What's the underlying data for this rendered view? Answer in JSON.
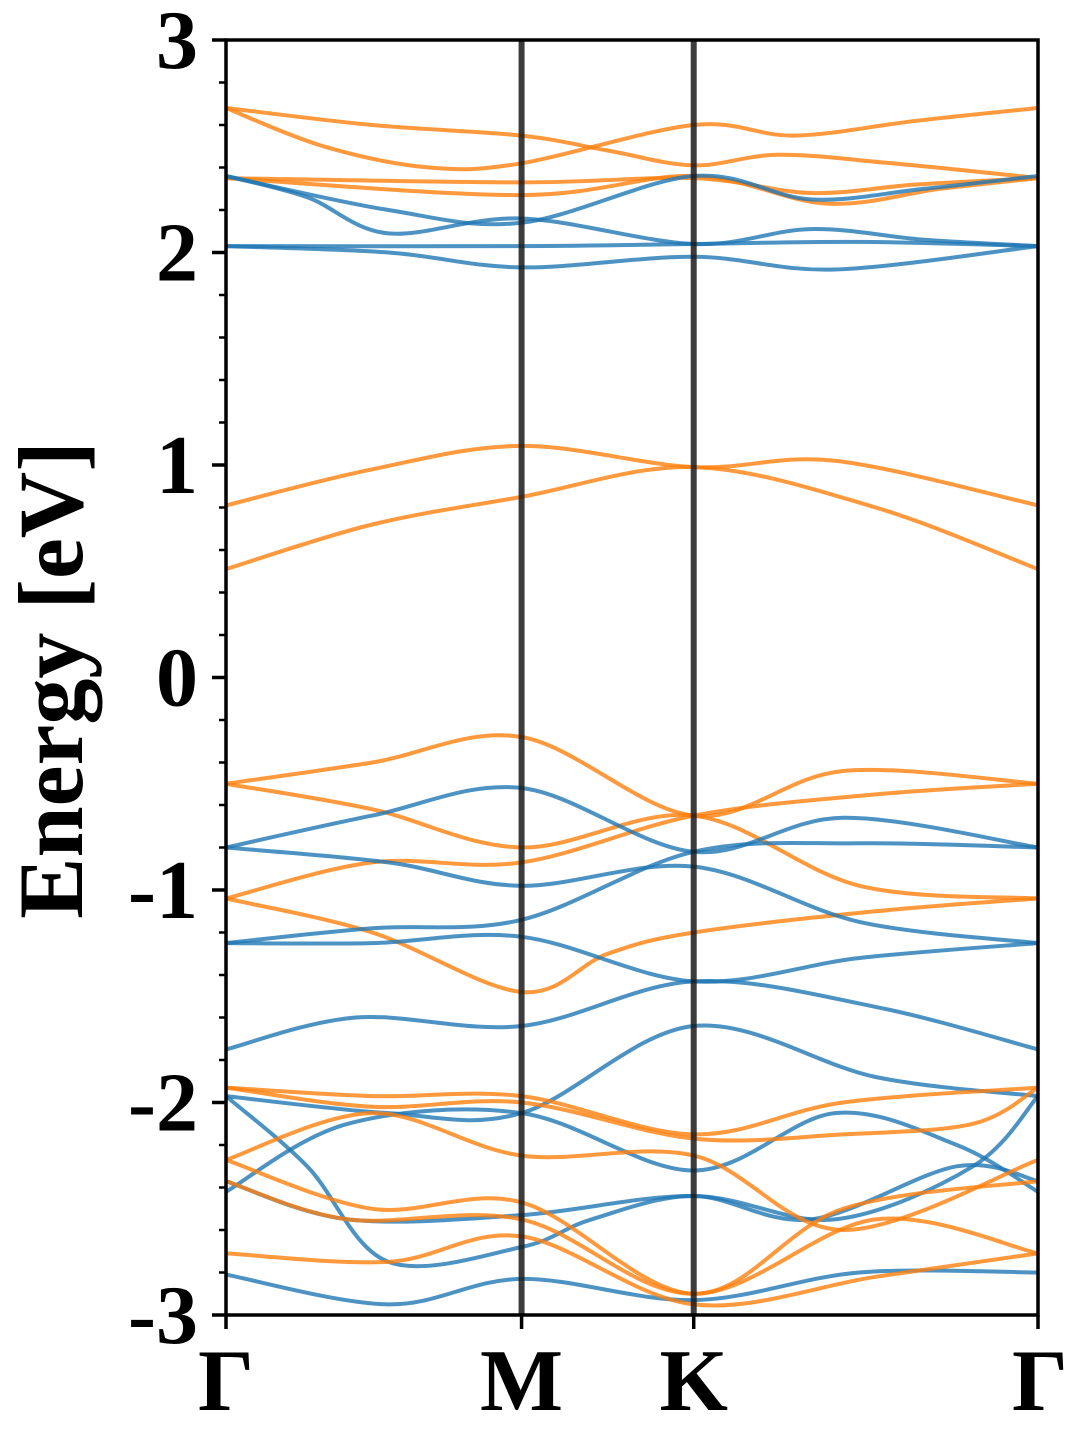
{
  "chart_data": {
    "type": "line",
    "title": "",
    "xlabel": "",
    "ylabel": "Energy [eV]",
    "ylim": [
      -3,
      3
    ],
    "yticks": [
      {
        "value": 3,
        "label": "3"
      },
      {
        "value": 2,
        "label": "2"
      },
      {
        "value": 1,
        "label": "1"
      },
      {
        "value": 0,
        "label": "0"
      },
      {
        "value": -1,
        "label": "-1"
      },
      {
        "value": -2,
        "label": "-2"
      },
      {
        "value": -3,
        "label": "-3"
      }
    ],
    "xlim": [
      0,
      1
    ],
    "kpoints": [
      {
        "label": "Γ",
        "x": 0.0
      },
      {
        "label": "M",
        "x": 0.364
      },
      {
        "label": "K",
        "x": 0.576
      },
      {
        "label": "Γ",
        "x": 1.0
      }
    ],
    "grid": false,
    "legend": "none",
    "colors": {
      "spin_a": "#1f77b4",
      "spin_b": "#ff7f0e",
      "divider": "#1a1a1a"
    },
    "series": [
      {
        "color": "#ff7f0e",
        "points": [
          [
            0,
            2.68
          ],
          [
            0.18,
            2.6
          ],
          [
            0.364,
            2.55
          ],
          [
            0.47,
            2.48
          ],
          [
            0.576,
            2.41
          ],
          [
            0.68,
            2.46
          ],
          [
            0.82,
            2.42
          ],
          [
            1.0,
            2.35
          ]
        ]
      },
      {
        "color": "#ff7f0e",
        "points": [
          [
            0,
            2.68
          ],
          [
            0.12,
            2.5
          ],
          [
            0.25,
            2.4
          ],
          [
            0.364,
            2.42
          ],
          [
            0.576,
            2.6
          ],
          [
            0.7,
            2.55
          ],
          [
            0.85,
            2.62
          ],
          [
            1.0,
            2.68
          ]
        ]
      },
      {
        "color": "#ff7f0e",
        "points": [
          [
            0,
            2.35
          ],
          [
            0.364,
            2.33
          ],
          [
            0.576,
            2.35
          ],
          [
            0.72,
            2.28
          ],
          [
            0.85,
            2.32
          ],
          [
            1.0,
            2.35
          ]
        ]
      },
      {
        "color": "#ff7f0e",
        "points": [
          [
            0,
            2.35
          ],
          [
            0.364,
            2.27
          ],
          [
            0.576,
            2.36
          ],
          [
            0.74,
            2.23
          ],
          [
            0.88,
            2.3
          ],
          [
            1.0,
            2.35
          ]
        ]
      },
      {
        "color": "#1f77b4",
        "points": [
          [
            0,
            2.36
          ],
          [
            0.2,
            2.2
          ],
          [
            0.364,
            2.14
          ],
          [
            0.576,
            2.36
          ],
          [
            0.72,
            2.25
          ],
          [
            0.86,
            2.3
          ],
          [
            1.0,
            2.36
          ]
        ]
      },
      {
        "color": "#1f77b4",
        "points": [
          [
            0,
            2.36
          ],
          [
            0.1,
            2.26
          ],
          [
            0.2,
            2.09
          ],
          [
            0.364,
            2.16
          ],
          [
            0.576,
            2.04
          ],
          [
            0.72,
            2.11
          ],
          [
            0.86,
            2.06
          ],
          [
            1.0,
            2.03
          ]
        ]
      },
      {
        "color": "#1f77b4",
        "points": [
          [
            0,
            2.03
          ],
          [
            0.364,
            2.03
          ],
          [
            0.576,
            2.04
          ],
          [
            0.78,
            2.05
          ],
          [
            1.0,
            2.03
          ]
        ]
      },
      {
        "color": "#1f77b4",
        "points": [
          [
            0,
            2.03
          ],
          [
            0.2,
            2.0
          ],
          [
            0.364,
            1.93
          ],
          [
            0.576,
            1.98
          ],
          [
            0.75,
            1.92
          ],
          [
            1.0,
            2.03
          ]
        ]
      },
      {
        "color": "#ff7f0e",
        "points": [
          [
            0,
            0.81
          ],
          [
            0.18,
            0.98
          ],
          [
            0.364,
            1.09
          ],
          [
            0.576,
            0.99
          ],
          [
            0.75,
            1.02
          ],
          [
            1.0,
            0.81
          ]
        ]
      },
      {
        "color": "#ff7f0e",
        "points": [
          [
            0,
            0.51
          ],
          [
            0.18,
            0.72
          ],
          [
            0.364,
            0.85
          ],
          [
            0.576,
            0.99
          ],
          [
            0.8,
            0.8
          ],
          [
            1.0,
            0.51
          ]
        ]
      },
      {
        "color": "#ff7f0e",
        "points": [
          [
            0,
            -0.5
          ],
          [
            0.18,
            -0.4
          ],
          [
            0.364,
            -0.28
          ],
          [
            0.576,
            -0.65
          ],
          [
            0.76,
            -0.44
          ],
          [
            1.0,
            -0.5
          ]
        ]
      },
      {
        "color": "#ff7f0e",
        "points": [
          [
            0,
            -0.5
          ],
          [
            0.18,
            -0.62
          ],
          [
            0.364,
            -0.8
          ],
          [
            0.576,
            -0.65
          ],
          [
            0.78,
            -0.98
          ],
          [
            1.0,
            -1.04
          ]
        ]
      },
      {
        "color": "#ff7f0e",
        "points": [
          [
            0,
            -1.04
          ],
          [
            0.18,
            -0.87
          ],
          [
            0.364,
            -0.87
          ],
          [
            0.576,
            -0.65
          ],
          [
            0.8,
            -0.55
          ],
          [
            1.0,
            -0.5
          ]
        ]
      },
      {
        "color": "#ff7f0e",
        "points": [
          [
            0,
            -1.04
          ],
          [
            0.18,
            -1.2
          ],
          [
            0.364,
            -1.48
          ],
          [
            0.47,
            -1.3
          ],
          [
            0.576,
            -1.2
          ],
          [
            0.8,
            -1.1
          ],
          [
            1.0,
            -1.04
          ]
        ]
      },
      {
        "color": "#1f77b4",
        "points": [
          [
            0,
            -0.8
          ],
          [
            0.18,
            -0.65
          ],
          [
            0.364,
            -0.52
          ],
          [
            0.576,
            -0.82
          ],
          [
            0.76,
            -0.66
          ],
          [
            1.0,
            -0.8
          ]
        ]
      },
      {
        "color": "#1f77b4",
        "points": [
          [
            0,
            -0.8
          ],
          [
            0.2,
            -0.87
          ],
          [
            0.364,
            -0.98
          ],
          [
            0.576,
            -0.89
          ],
          [
            0.78,
            -1.15
          ],
          [
            1.0,
            -1.25
          ]
        ]
      },
      {
        "color": "#1f77b4",
        "points": [
          [
            0,
            -1.25
          ],
          [
            0.18,
            -1.18
          ],
          [
            0.364,
            -1.14
          ],
          [
            0.576,
            -0.82
          ],
          [
            0.78,
            -0.78
          ],
          [
            1.0,
            -0.8
          ]
        ]
      },
      {
        "color": "#1f77b4",
        "points": [
          [
            0,
            -1.25
          ],
          [
            0.18,
            -1.25
          ],
          [
            0.364,
            -1.22
          ],
          [
            0.576,
            -1.43
          ],
          [
            0.78,
            -1.32
          ],
          [
            1.0,
            -1.25
          ]
        ]
      },
      {
        "color": "#1f77b4",
        "points": [
          [
            0,
            -1.75
          ],
          [
            0.16,
            -1.6
          ],
          [
            0.364,
            -1.64
          ],
          [
            0.576,
            -1.43
          ],
          [
            0.8,
            -1.55
          ],
          [
            1.0,
            -1.75
          ]
        ]
      },
      {
        "color": "#1f77b4",
        "points": [
          [
            0,
            -1.97
          ],
          [
            0.2,
            -2.05
          ],
          [
            0.364,
            -2.05
          ],
          [
            0.576,
            -1.64
          ],
          [
            0.8,
            -1.88
          ],
          [
            1.0,
            -1.97
          ]
        ]
      },
      {
        "color": "#1f77b4",
        "points": [
          [
            0,
            -2.42
          ],
          [
            0.15,
            -2.1
          ],
          [
            0.364,
            -2.05
          ],
          [
            0.576,
            -2.32
          ],
          [
            0.75,
            -2.05
          ],
          [
            0.9,
            -2.2
          ],
          [
            1.0,
            -2.42
          ]
        ]
      },
      {
        "color": "#1f77b4",
        "points": [
          [
            0,
            -2.37
          ],
          [
            0.15,
            -2.55
          ],
          [
            0.364,
            -2.53
          ],
          [
            0.576,
            -2.44
          ],
          [
            0.75,
            -2.55
          ],
          [
            0.92,
            -2.3
          ],
          [
            1.0,
            -1.97
          ]
        ]
      },
      {
        "color": "#1f77b4",
        "points": [
          [
            0,
            -1.97
          ],
          [
            0.1,
            -2.3
          ],
          [
            0.2,
            -2.75
          ],
          [
            0.364,
            -2.68
          ],
          [
            0.45,
            -2.55
          ],
          [
            0.576,
            -2.44
          ],
          [
            0.72,
            -2.55
          ],
          [
            0.9,
            -2.3
          ],
          [
            1.0,
            -2.37
          ]
        ]
      },
      {
        "color": "#1f77b4",
        "points": [
          [
            0,
            -2.81
          ],
          [
            0.2,
            -2.95
          ],
          [
            0.364,
            -2.83
          ],
          [
            0.576,
            -2.93
          ],
          [
            0.78,
            -2.8
          ],
          [
            1.0,
            -2.8
          ]
        ]
      },
      {
        "color": "#ff7f0e",
        "points": [
          [
            0,
            -1.93
          ],
          [
            0.18,
            -1.97
          ],
          [
            0.364,
            -1.97
          ],
          [
            0.576,
            -2.15
          ],
          [
            0.76,
            -2.0
          ],
          [
            1.0,
            -1.93
          ]
        ]
      },
      {
        "color": "#ff7f0e",
        "points": [
          [
            0,
            -1.93
          ],
          [
            0.18,
            -2.02
          ],
          [
            0.364,
            -2.0
          ],
          [
            0.576,
            -2.17
          ],
          [
            0.76,
            -2.15
          ],
          [
            0.92,
            -2.1
          ],
          [
            1.0,
            -1.93
          ]
        ]
      },
      {
        "color": "#ff7f0e",
        "points": [
          [
            0,
            -2.27
          ],
          [
            0.18,
            -2.05
          ],
          [
            0.364,
            -2.25
          ],
          [
            0.576,
            -2.25
          ],
          [
            0.76,
            -2.6
          ],
          [
            1.0,
            -2.27
          ]
        ]
      },
      {
        "color": "#ff7f0e",
        "points": [
          [
            0,
            -2.27
          ],
          [
            0.18,
            -2.5
          ],
          [
            0.364,
            -2.47
          ],
          [
            0.576,
            -2.9
          ],
          [
            0.76,
            -2.5
          ],
          [
            1.0,
            -2.37
          ]
        ]
      },
      {
        "color": "#ff7f0e",
        "points": [
          [
            0,
            -2.37
          ],
          [
            0.15,
            -2.55
          ],
          [
            0.364,
            -2.55
          ],
          [
            0.576,
            -2.9
          ],
          [
            0.8,
            -2.55
          ],
          [
            1.0,
            -2.71
          ]
        ]
      },
      {
        "color": "#ff7f0e",
        "points": [
          [
            0,
            -2.71
          ],
          [
            0.2,
            -2.75
          ],
          [
            0.364,
            -2.63
          ],
          [
            0.576,
            -2.95
          ],
          [
            0.8,
            -2.82
          ],
          [
            1.0,
            -2.71
          ]
        ]
      }
    ]
  }
}
